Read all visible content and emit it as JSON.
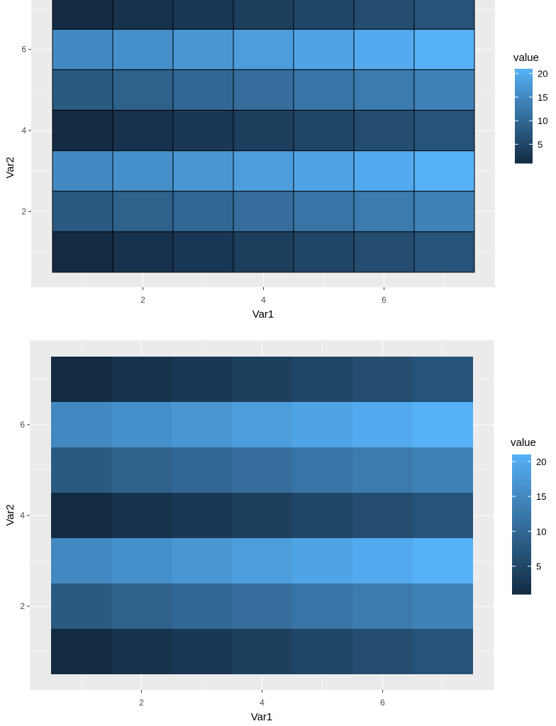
{
  "chart_data": [
    {
      "type": "heatmap",
      "xlabel": "Var1",
      "ylabel": "Var2",
      "x_ticks": [
        "2",
        "4",
        "6"
      ],
      "y_ticks": [
        "2",
        "4",
        "6"
      ],
      "xlim": [
        0.5,
        7.5
      ],
      "ylim": [
        0.5,
        7.5
      ],
      "tile_borders": true,
      "x": [
        1,
        2,
        3,
        4,
        5,
        6,
        7
      ],
      "y": [
        1,
        2,
        3,
        4,
        5,
        6,
        7
      ],
      "values": [
        [
          1,
          2,
          3,
          4,
          5,
          6,
          7
        ],
        [
          8,
          9,
          10,
          11,
          12,
          13,
          14
        ],
        [
          15,
          16,
          17,
          18,
          19,
          20,
          21
        ],
        [
          1,
          2,
          3,
          4,
          5,
          6,
          7
        ],
        [
          8,
          9,
          10,
          11,
          12,
          13,
          14
        ],
        [
          15,
          16,
          17,
          18,
          19,
          20,
          21
        ],
        [
          1,
          2,
          3,
          4,
          5,
          6,
          7
        ]
      ],
      "legend": {
        "title": "value",
        "breaks": [
          "5",
          "10",
          "15",
          "20"
        ],
        "position": "right"
      },
      "color_low": "#132B43",
      "color_high": "#56B1F7"
    },
    {
      "type": "heatmap",
      "xlabel": "Var1",
      "ylabel": "Var2",
      "x_ticks": [
        "2",
        "4",
        "6"
      ],
      "y_ticks": [
        "2",
        "4",
        "6"
      ],
      "xlim": [
        0.5,
        7.5
      ],
      "ylim": [
        0.5,
        7.5
      ],
      "tile_borders": false,
      "x": [
        1,
        2,
        3,
        4,
        5,
        6,
        7
      ],
      "y": [
        1,
        2,
        3,
        4,
        5,
        6,
        7
      ],
      "values": [
        [
          1,
          2,
          3,
          4,
          5,
          6,
          7
        ],
        [
          8,
          9,
          10,
          11,
          12,
          13,
          14
        ],
        [
          15,
          16,
          17,
          18,
          19,
          20,
          21
        ],
        [
          1,
          2,
          3,
          4,
          5,
          6,
          7
        ],
        [
          8,
          9,
          10,
          11,
          12,
          13,
          14
        ],
        [
          15,
          16,
          17,
          18,
          19,
          20,
          21
        ],
        [
          1,
          2,
          3,
          4,
          5,
          6,
          7
        ]
      ],
      "legend": {
        "title": "value",
        "breaks": [
          "5",
          "10",
          "15",
          "20"
        ],
        "position": "right"
      },
      "color_low": "#132B43",
      "color_high": "#56B1F7"
    }
  ],
  "colors": {
    "panel_background": "#EBEBEB",
    "grid_major": "#FFFFFF",
    "tile_border": "#000000"
  }
}
